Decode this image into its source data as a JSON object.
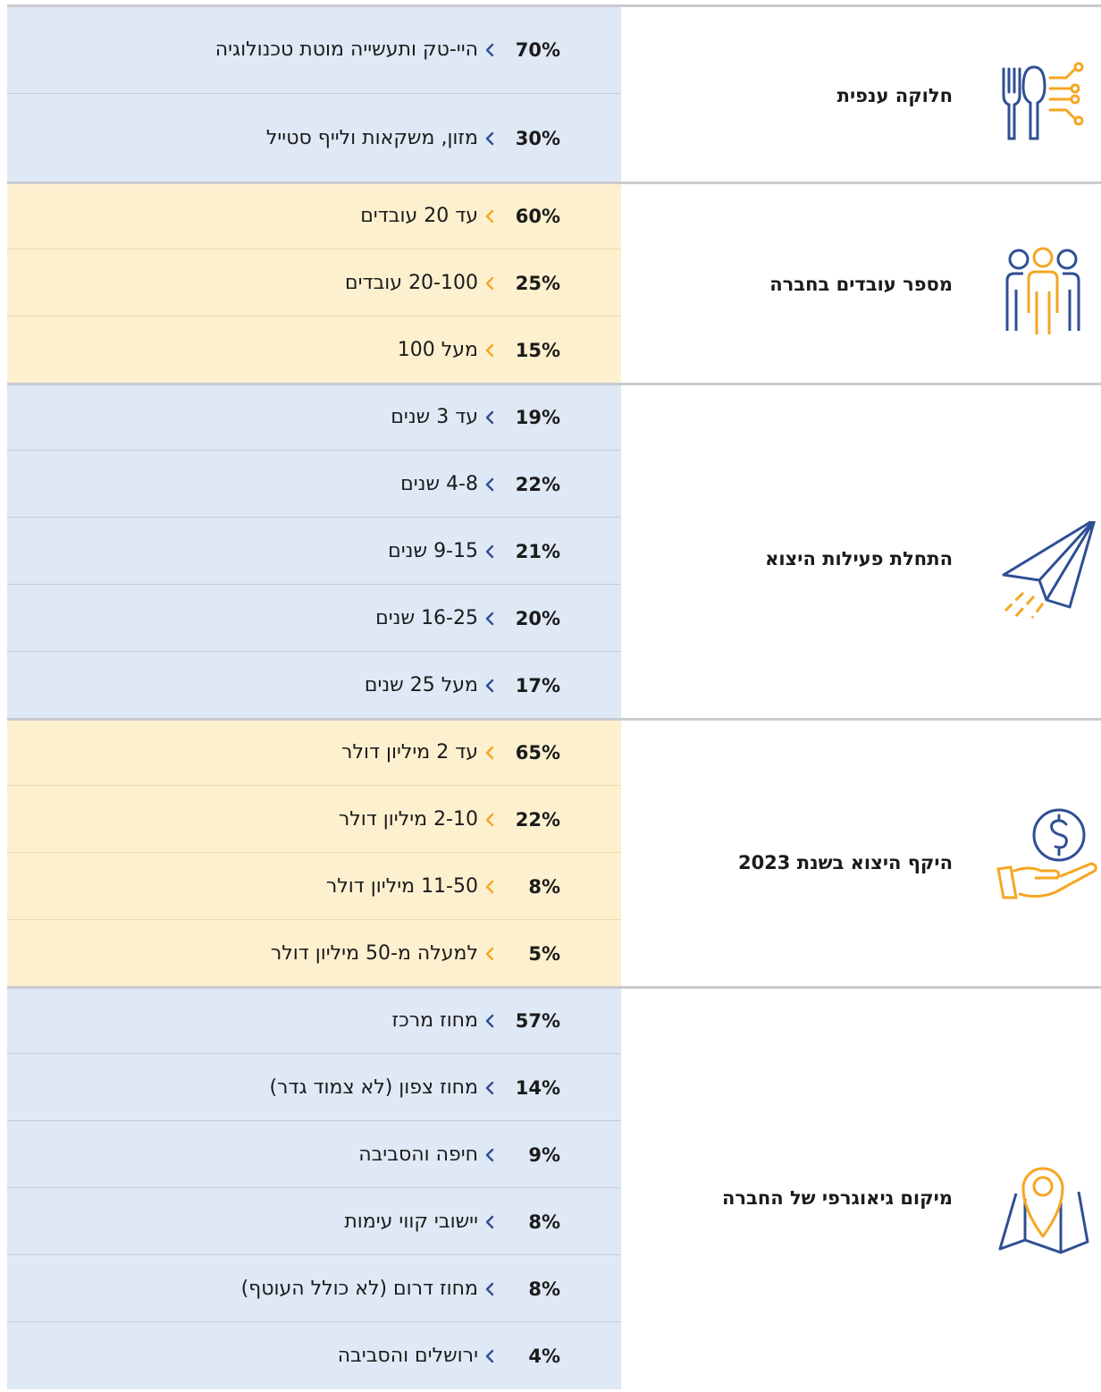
{
  "sections": [
    {
      "title": "חלוקה ענפית",
      "rows": [
        {
          "percent": "70%",
          "label": "היי-טק ותעשייה מוטת טכנולוגיה"
        },
        {
          "percent": "30%",
          "label": "מזון, משקאות ולייף סטייל"
        }
      ]
    },
    {
      "title": "מספר עובדים בחברה",
      "rows": [
        {
          "percent": "60%",
          "label": "עד 20 עובדים"
        },
        {
          "percent": "25%",
          "label": "20-100 עובדים"
        },
        {
          "percent": "15%",
          "label": "מעל 100"
        }
      ]
    },
    {
      "title": "התחלת פעילות היצוא",
      "rows": [
        {
          "percent": "19%",
          "label": "עד 3 שנים"
        },
        {
          "percent": "22%",
          "label": "4-8 שנים"
        },
        {
          "percent": "21%",
          "label": "9-15 שנים"
        },
        {
          "percent": "20%",
          "label": "16-25 שנים"
        },
        {
          "percent": "17%",
          "label": "מעל 25 שנים"
        }
      ]
    },
    {
      "title": "היקף היצוא בשנת 2023",
      "rows": [
        {
          "percent": "65%",
          "label": "עד 2 מיליון דולר"
        },
        {
          "percent": "22%",
          "label": "2-10 מיליון דולר"
        },
        {
          "percent": "8%",
          "label": "11-50 מיליון דולר"
        },
        {
          "percent": "5%",
          "label": "למעלה מ-50 מיליון דולר"
        }
      ]
    },
    {
      "title": "מיקום גיאוגרפי של החברה",
      "rows": [
        {
          "percent": "57%",
          "label": "מחוז מרכז"
        },
        {
          "percent": "14%",
          "label": "מחוז צפון (לא צמוד גדר)"
        },
        {
          "percent": "9%",
          "label": "חיפה והסביבה"
        },
        {
          "percent": "8%",
          "label": "יישובי קווי עימות"
        },
        {
          "percent": "8%",
          "label": "מחוז דרום (לא כולל העוטף)"
        },
        {
          "percent": "4%",
          "label": "ירושלים והסביבה"
        }
      ]
    }
  ]
}
